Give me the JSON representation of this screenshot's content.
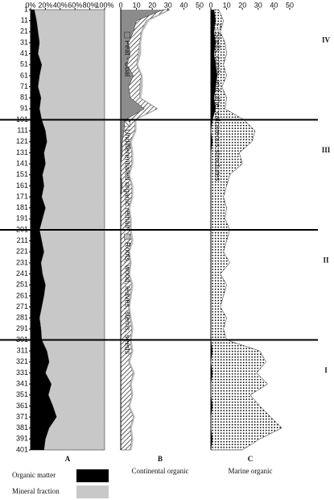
{
  "chart_data": [
    {
      "type": "area",
      "panel": "A",
      "y": [
        1,
        11,
        21,
        31,
        41,
        51,
        61,
        71,
        81,
        91,
        101,
        111,
        121,
        131,
        141,
        151,
        161,
        171,
        181,
        191,
        201,
        211,
        221,
        231,
        241,
        251,
        261,
        271,
        281,
        291,
        301,
        311,
        321,
        331,
        341,
        351,
        361,
        371,
        381,
        391,
        401
      ],
      "ylim": [
        1,
        401
      ],
      "yticks": [
        1,
        11,
        21,
        31,
        41,
        51,
        61,
        71,
        81,
        91,
        101,
        111,
        121,
        131,
        141,
        151,
        161,
        171,
        181,
        191,
        201,
        211,
        221,
        231,
        241,
        251,
        261,
        271,
        281,
        291,
        301,
        311,
        321,
        331,
        341,
        351,
        361,
        371,
        381,
        391,
        401
      ],
      "xlim": [
        0,
        100
      ],
      "xticks": [
        {
          "value": 0,
          "label": "0%"
        },
        {
          "value": 20,
          "label": "20%"
        },
        {
          "value": 40,
          "label": "40%"
        },
        {
          "value": 60,
          "label": "60%"
        },
        {
          "value": 80,
          "label": "80%"
        },
        {
          "value": 100,
          "label": "100%"
        }
      ],
      "series": [
        {
          "name": "Organic matter",
          "color": "#000000",
          "values": [
            5,
            8,
            10,
            12,
            10,
            15,
            12,
            10,
            14,
            12,
            15,
            20,
            22,
            18,
            20,
            16,
            18,
            15,
            20,
            16,
            12,
            15,
            18,
            14,
            16,
            20,
            18,
            15,
            12,
            14,
            15,
            22,
            25,
            20,
            28,
            24,
            30,
            35,
            25,
            20,
            18
          ]
        },
        {
          "name": "Mineral fraction",
          "color": "#c8c8c8",
          "values": [
            95,
            92,
            90,
            88,
            90,
            85,
            88,
            90,
            86,
            88,
            85,
            80,
            78,
            82,
            80,
            84,
            82,
            85,
            80,
            84,
            88,
            85,
            82,
            86,
            84,
            80,
            82,
            85,
            88,
            86,
            85,
            78,
            75,
            80,
            72,
            76,
            70,
            65,
            75,
            80,
            82
          ]
        }
      ]
    },
    {
      "type": "area",
      "panel": "B",
      "title": "Continental organic",
      "y": [
        1,
        11,
        21,
        31,
        41,
        51,
        61,
        71,
        81,
        91,
        101,
        111,
        121,
        131,
        141,
        151,
        161,
        171,
        181,
        191,
        201,
        211,
        221,
        231,
        241,
        251,
        261,
        271,
        281,
        291,
        301,
        311,
        321,
        331,
        341,
        351,
        361,
        371,
        381,
        391,
        401
      ],
      "ylim": [
        1,
        401
      ],
      "xlim": [
        0,
        50
      ],
      "xticks": [
        0,
        10,
        20,
        30,
        40,
        50
      ],
      "series": [
        {
          "name": "Peat - Coal",
          "color": "#8c8c8c",
          "pattern": "solid",
          "values": [
            27,
            10,
            8,
            5,
            6,
            4,
            8,
            5,
            6,
            15,
            3,
            2,
            1,
            1,
            0,
            0,
            1,
            0,
            0,
            0,
            0,
            0,
            0,
            0,
            0,
            0,
            0,
            0,
            0,
            0,
            0,
            0,
            0,
            0,
            0,
            0,
            0,
            0,
            0,
            0,
            0
          ]
        },
        {
          "name": "Undifferentiated organic remain",
          "color": "#333333",
          "pattern": "hatch",
          "values": [
            4,
            6,
            5,
            7,
            5,
            6,
            5,
            7,
            6,
            8,
            6,
            7,
            5,
            6,
            7,
            5,
            6,
            7,
            5,
            6,
            6,
            7,
            5,
            6,
            5,
            7,
            6,
            5,
            6,
            7,
            6,
            7,
            5,
            8,
            6,
            7,
            5,
            8,
            6,
            7,
            6
          ]
        },
        {
          "name": "Roots, wood, leaves, stems, seeds",
          "color": "#bdbdbd",
          "pattern": "solid",
          "values": [
            1,
            2,
            1,
            1,
            2,
            1,
            1,
            2,
            1,
            1,
            1,
            1,
            1,
            1,
            1,
            1,
            1,
            1,
            1,
            1,
            1,
            1,
            1,
            1,
            1,
            1,
            1,
            1,
            1,
            1,
            1,
            1,
            1,
            1,
            1,
            1,
            1,
            1,
            1,
            1,
            1
          ]
        }
      ]
    },
    {
      "type": "area",
      "panel": "C",
      "title": "Marine organic",
      "y": [
        1,
        11,
        21,
        31,
        41,
        51,
        61,
        71,
        81,
        91,
        101,
        111,
        121,
        131,
        141,
        151,
        161,
        171,
        181,
        191,
        201,
        211,
        221,
        231,
        241,
        251,
        261,
        271,
        281,
        291,
        301,
        311,
        321,
        331,
        341,
        351,
        361,
        371,
        381,
        391,
        401
      ],
      "ylim": [
        1,
        401
      ],
      "xlim": [
        0,
        50
      ],
      "xticks": [
        0,
        10,
        20,
        30,
        40,
        50
      ],
      "series": [
        {
          "name": "Jaws, skeletal remains of fish",
          "color": "#000000",
          "pattern": "solid",
          "values": [
            2,
            3,
            2,
            3,
            2,
            3,
            4,
            3,
            2,
            3,
            1,
            0,
            1,
            0,
            0,
            0,
            0,
            0,
            0,
            0,
            0,
            0,
            0,
            0,
            0,
            0,
            0,
            0,
            0,
            0,
            0,
            1,
            0,
            1,
            0,
            0,
            1,
            0,
            0,
            1,
            0
          ]
        },
        {
          "name": "Shells, corals, and other calcareous structures",
          "color": "#222222",
          "pattern": "dots",
          "values": [
            3,
            5,
            4,
            6,
            8,
            5,
            6,
            4,
            8,
            6,
            20,
            28,
            25,
            18,
            20,
            12,
            10,
            8,
            10,
            9,
            12,
            10,
            8,
            12,
            6,
            10,
            8,
            6,
            10,
            8,
            10,
            30,
            35,
            28,
            36,
            25,
            30,
            38,
            45,
            30,
            20
          ]
        }
      ]
    }
  ],
  "zones": {
    "labels": [
      "IV",
      "III",
      "II",
      "I"
    ],
    "boundaries": [
      101,
      201,
      301
    ]
  },
  "panel_labels": [
    "A",
    "B",
    "C"
  ]
}
